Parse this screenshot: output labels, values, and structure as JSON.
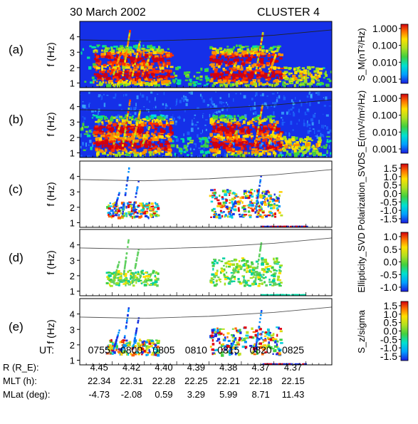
{
  "header": {
    "date": "30 March 2002",
    "spacecraft": "CLUSTER 4"
  },
  "chart_data": {
    "type": "heatmap",
    "panels": [
      {
        "id": "(a)",
        "ylabel": "f (Hz)",
        "yticks": [
          1,
          2,
          3,
          4
        ],
        "ylim": [
          0.7,
          5.0
        ],
        "background": "spectrogram-blue",
        "colorbar_label": "S_M(nT²/Hz)",
        "colorbar_ticks": [
          "1.000",
          "0.100",
          "0.010",
          "0.001"
        ],
        "colorbar_scale": "log"
      },
      {
        "id": "(b)",
        "ylabel": "f (Hz)",
        "yticks": [
          1,
          2,
          3,
          4
        ],
        "ylim": [
          0.7,
          5.0
        ],
        "background": "spectrogram-blue",
        "colorbar_label": "S_E(mV²/m²/Hz)",
        "colorbar_ticks": [
          "1.000",
          "0.100",
          "0.010",
          "0.001"
        ],
        "colorbar_scale": "log"
      },
      {
        "id": "(c)",
        "ylabel": "f (Hz)",
        "yticks": [
          1,
          2,
          3,
          4
        ],
        "ylim": [
          0.7,
          5.0
        ],
        "background": "white",
        "colorbar_label": "Polarization_SVD",
        "colorbar_ticks": [
          "1.5",
          "1.0",
          "0.5",
          "0.0",
          "-0.5",
          "-1.0",
          "-1.5"
        ],
        "colorbar_range": [
          -1.5,
          1.5
        ]
      },
      {
        "id": "(d)",
        "ylabel": "f (Hz)",
        "yticks": [
          1,
          2,
          3,
          4
        ],
        "ylim": [
          0.7,
          5.0
        ],
        "background": "white",
        "colorbar_label": "Ellipticity_SVD",
        "colorbar_ticks": [
          "1.0",
          "0.5",
          "0.0",
          "-0.5",
          "-1.0"
        ],
        "colorbar_range": [
          -1.2,
          1.2
        ]
      },
      {
        "id": "(e)",
        "ylabel": "f (Hz)",
        "yticks": [
          1,
          2,
          3,
          4
        ],
        "ylim": [
          0.7,
          5.0
        ],
        "background": "white",
        "colorbar_label": "S_z/sigma",
        "colorbar_ticks": [
          "1.5",
          "1.0",
          "0.5",
          "0.0",
          "-0.5",
          "-1.0",
          "-1.5"
        ],
        "colorbar_range": [
          -1.5,
          1.5
        ]
      }
    ],
    "x_axis": {
      "label": "UT:",
      "ticks": [
        "0755",
        "0800",
        "0805",
        "0810",
        "0815",
        "0820",
        "0825"
      ],
      "range_minutes": [
        0,
        39
      ]
    },
    "ephemeris": [
      {
        "label": "R (R_E):",
        "values": [
          "4.45",
          "4.42",
          "4.40",
          "4.39",
          "4.38",
          "4.37",
          "4.37"
        ]
      },
      {
        "label": "MLT (h):",
        "values": [
          "22.34",
          "22.31",
          "22.28",
          "22.25",
          "22.21",
          "22.18",
          "22.15"
        ]
      },
      {
        "label": "MLat (deg):",
        "values": [
          "-4.73",
          "-2.08",
          "0.59",
          "3.29",
          "5.99",
          "8.71",
          "11.43"
        ]
      }
    ],
    "gyrofrequency_curve_hz": [
      [
        0,
        3.8
      ],
      [
        10,
        3.72
      ],
      [
        20,
        3.85
      ],
      [
        30,
        4.1
      ],
      [
        39,
        4.45
      ]
    ],
    "wave_bands_hz": [
      1.6,
      2.6
    ]
  }
}
